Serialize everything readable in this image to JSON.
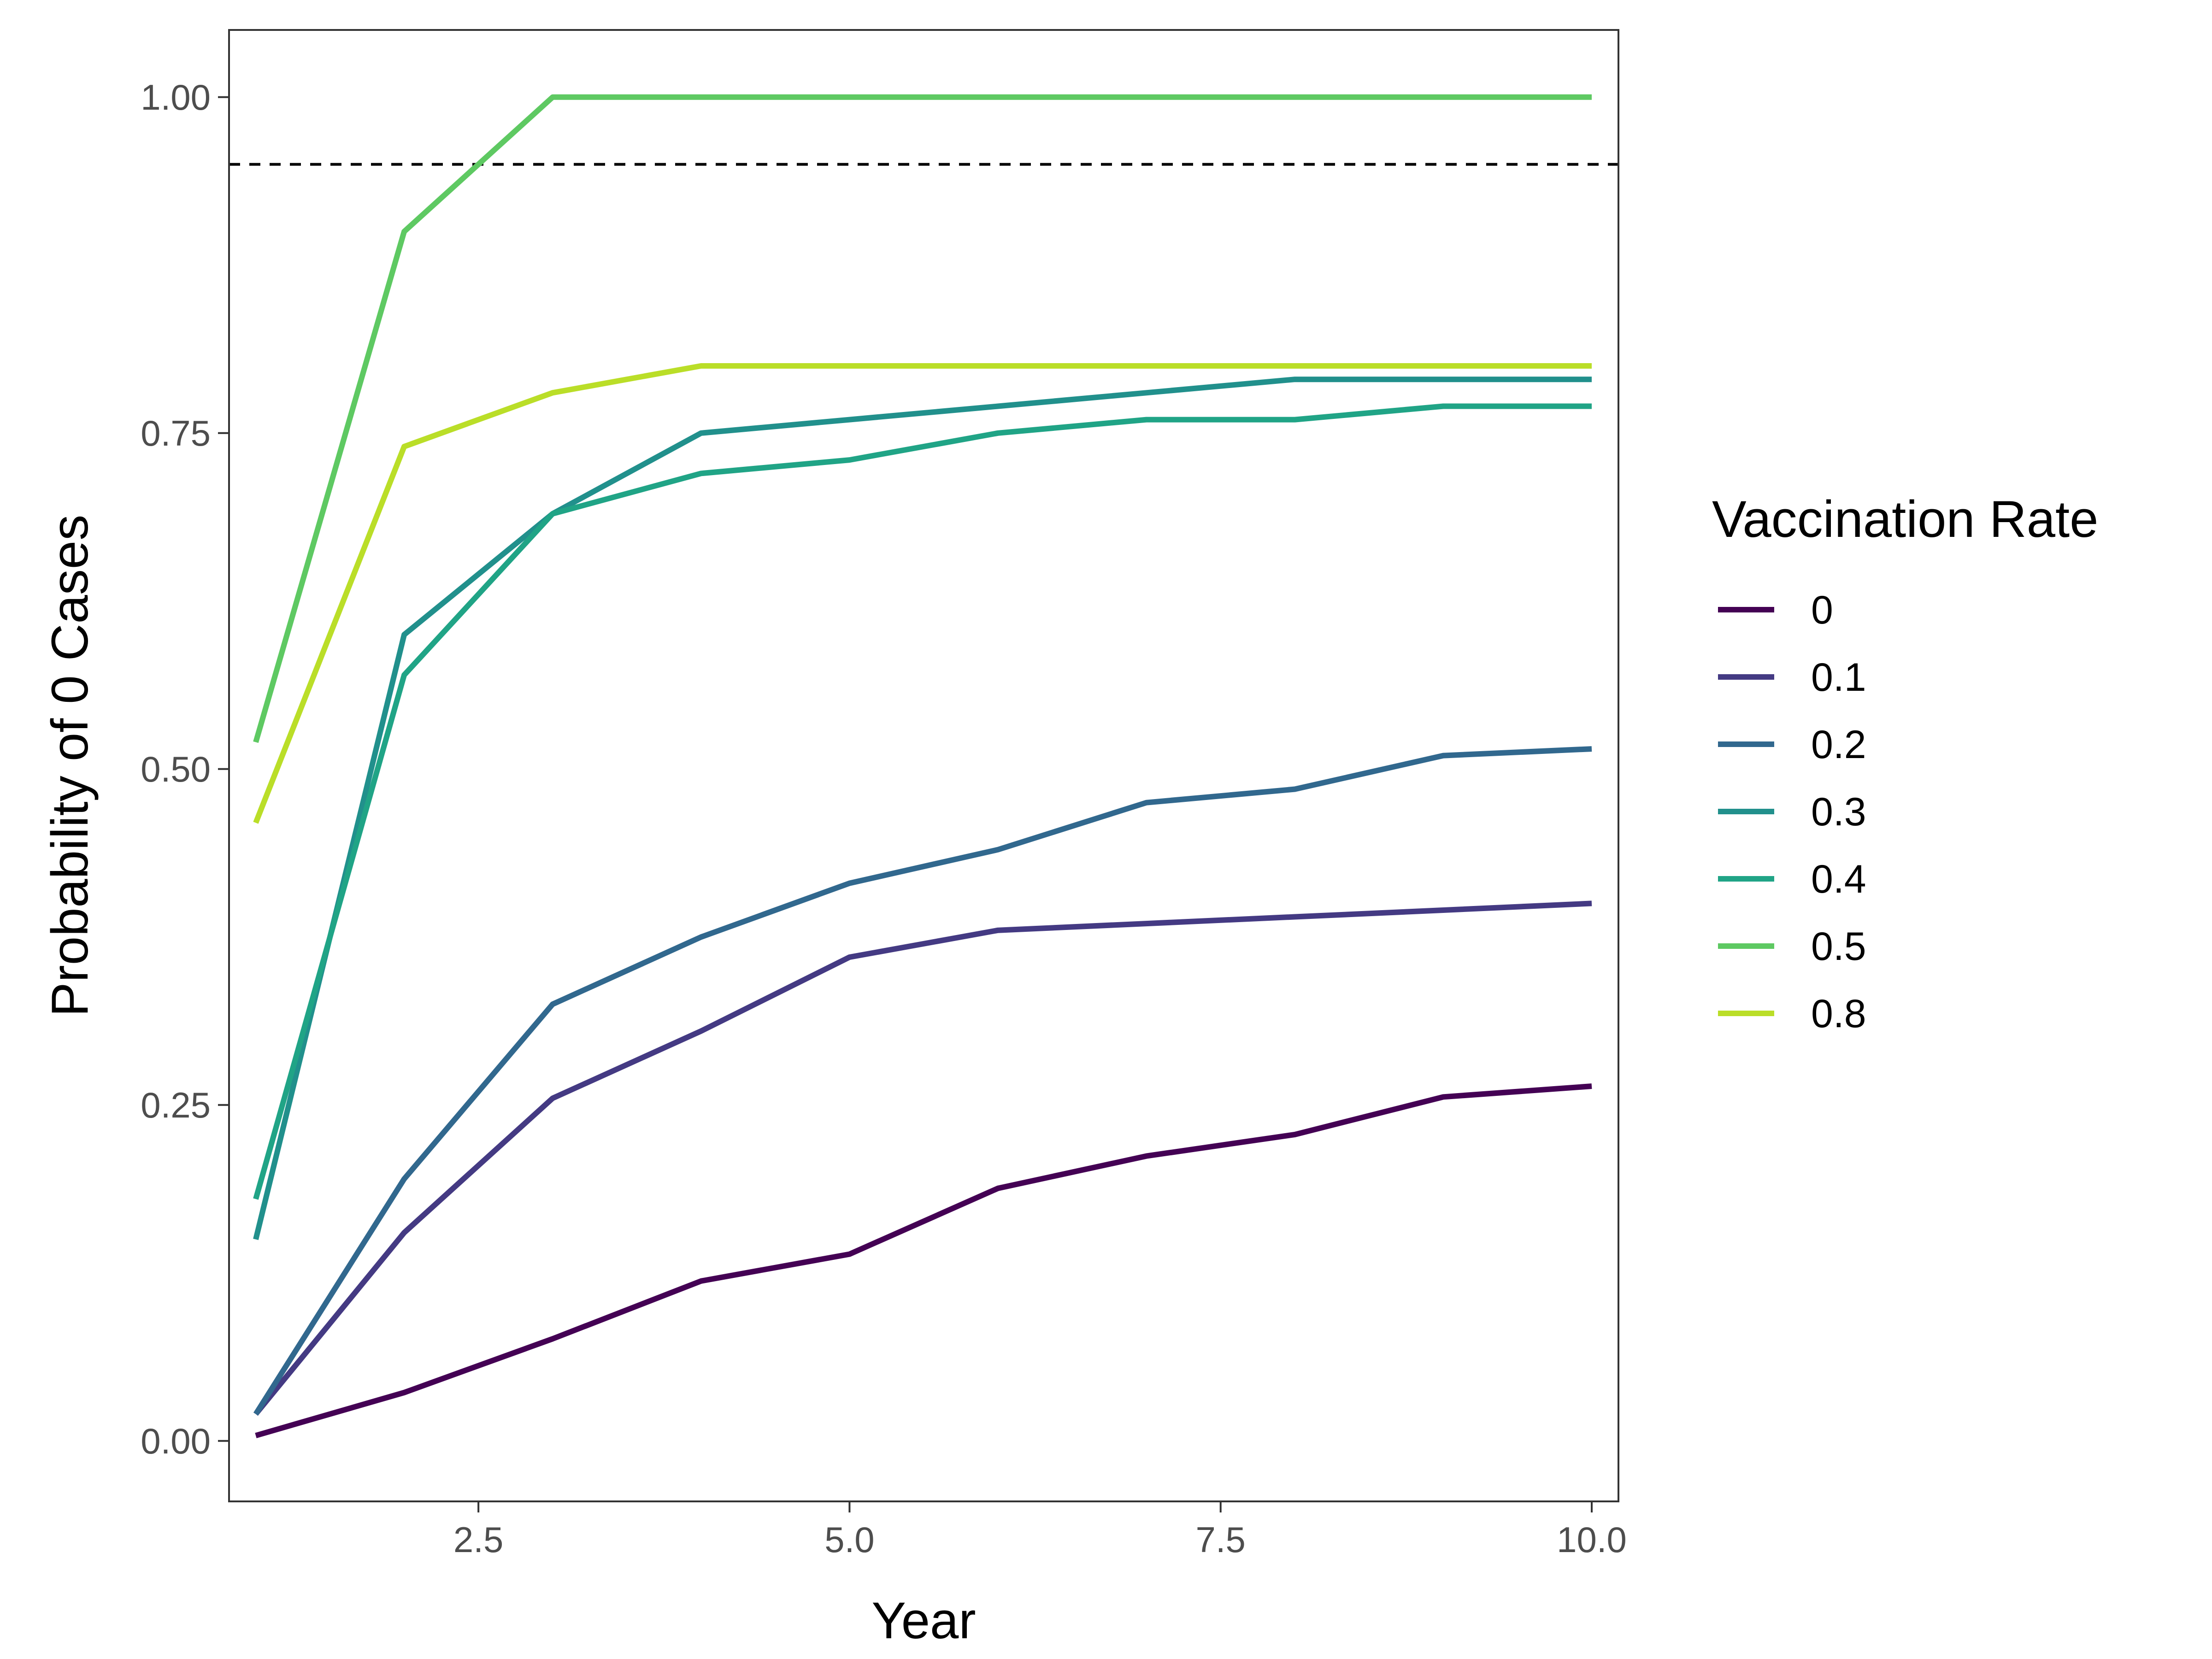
{
  "chart_data": {
    "type": "line",
    "title": "",
    "xlabel": "Year",
    "ylabel": "Probability of 0 Cases",
    "xlim": [
      0.82,
      10.18
    ],
    "ylim": [
      -0.045,
      1.05
    ],
    "x_ticks": [
      2.5,
      5.0,
      7.5,
      10.0
    ],
    "x_tick_labels": [
      "2.5",
      "5.0",
      "7.5",
      "10.0"
    ],
    "y_ticks": [
      0.0,
      0.25,
      0.5,
      0.75,
      1.0
    ],
    "y_tick_labels": [
      "0.00",
      "0.25",
      "0.50",
      "0.75",
      "1.00"
    ],
    "grid": false,
    "reference_line": {
      "y": 0.95,
      "style": "dashed",
      "color": "#000000"
    },
    "legend": {
      "title": "Vaccination Rate",
      "position": "right"
    },
    "x": [
      1,
      2,
      3,
      4,
      5,
      6,
      7,
      8,
      9,
      10
    ],
    "series": [
      {
        "name": "0",
        "color": "#440154",
        "values": [
          0.004,
          0.036,
          0.076,
          0.119,
          0.139,
          0.188,
          0.212,
          0.228,
          0.256,
          0.264
        ]
      },
      {
        "name": "0.1",
        "color": "#443A83",
        "values": [
          0.02,
          0.155,
          0.255,
          0.305,
          0.36,
          0.38,
          0.385,
          0.39,
          0.395,
          0.4
        ]
      },
      {
        "name": "0.2",
        "color": "#31688E",
        "values": [
          0.02,
          0.195,
          0.325,
          0.375,
          0.415,
          0.44,
          0.475,
          0.485,
          0.51,
          0.515
        ]
      },
      {
        "name": "0.3",
        "color": "#21908C",
        "values": [
          0.15,
          0.6,
          0.69,
          0.75,
          0.76,
          0.77,
          0.78,
          0.79,
          0.79,
          0.79
        ]
      },
      {
        "name": "0.4",
        "color": "#20A486",
        "values": [
          0.18,
          0.57,
          0.69,
          0.72,
          0.73,
          0.75,
          0.76,
          0.76,
          0.77,
          0.77
        ]
      },
      {
        "name": "0.5",
        "color": "#5EC962",
        "values": [
          0.52,
          0.9,
          1.0,
          1.0,
          1.0,
          1.0,
          1.0,
          1.0,
          1.0,
          1.0
        ]
      },
      {
        "name": "0.8",
        "color": "#BADE28",
        "values": [
          0.46,
          0.74,
          0.78,
          0.8,
          0.8,
          0.8,
          0.8,
          0.8,
          0.8,
          0.8
        ]
      }
    ]
  }
}
